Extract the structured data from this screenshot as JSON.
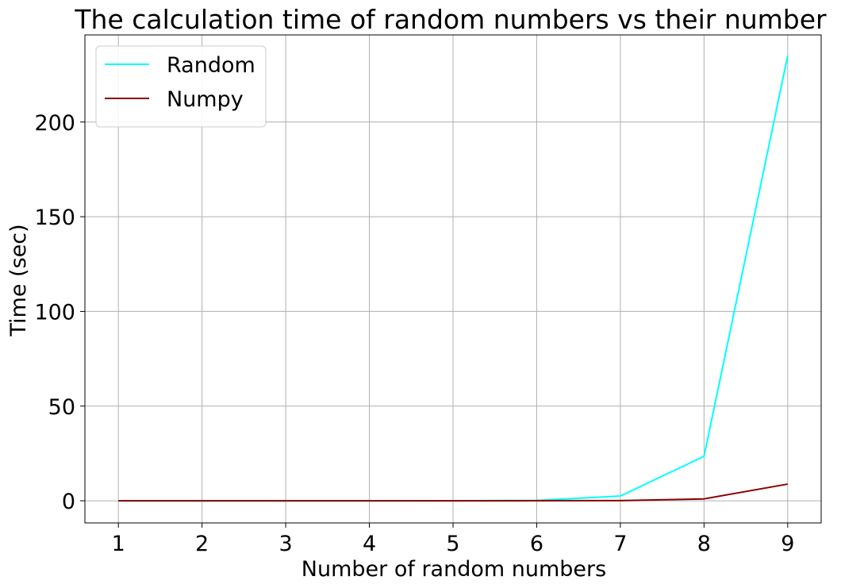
{
  "chart_data": {
    "type": "line",
    "title": "The calculation time of random numbers vs their number",
    "xlabel": "Number of random numbers",
    "ylabel": "Time (sec)",
    "x": [
      1,
      2,
      3,
      4,
      5,
      6,
      7,
      8,
      9
    ],
    "xticks": [
      1,
      2,
      3,
      4,
      5,
      6,
      7,
      8,
      9
    ],
    "yticks": [
      0,
      50,
      100,
      150,
      200
    ],
    "xlim": [
      0.6,
      9.4
    ],
    "ylim": [
      -11.7,
      246
    ],
    "grid": true,
    "legend_position": "top-left",
    "series": [
      {
        "name": "Random",
        "color": "#00ffff",
        "values": [
          0.0,
          0.0,
          0.0,
          0.0,
          0.01,
          0.2,
          2.5,
          23.5,
          235
        ]
      },
      {
        "name": "Numpy",
        "color": "#8b0000",
        "values": [
          0.0,
          0.0,
          0.0,
          0.0,
          0.0,
          0.01,
          0.1,
          1.0,
          8.8
        ]
      }
    ]
  }
}
